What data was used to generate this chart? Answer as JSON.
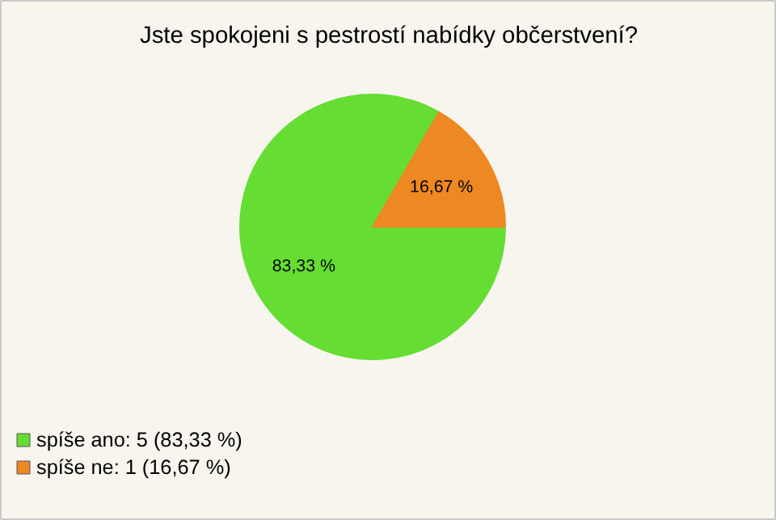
{
  "chart_data": {
    "type": "pie",
    "title": "Jste spokojeni s pestrostí nabídky občerstvení?",
    "categories": [
      "spíše ano: 5 (83,33 %)",
      "spíše ne: 1 (16,67 %)"
    ],
    "values": [
      83.33,
      16.67
    ],
    "value_labels": [
      "83,33 %",
      "16,67 %"
    ],
    "colors": [
      "#66dd33",
      "#ee8822"
    ],
    "legend": "bottom left"
  }
}
